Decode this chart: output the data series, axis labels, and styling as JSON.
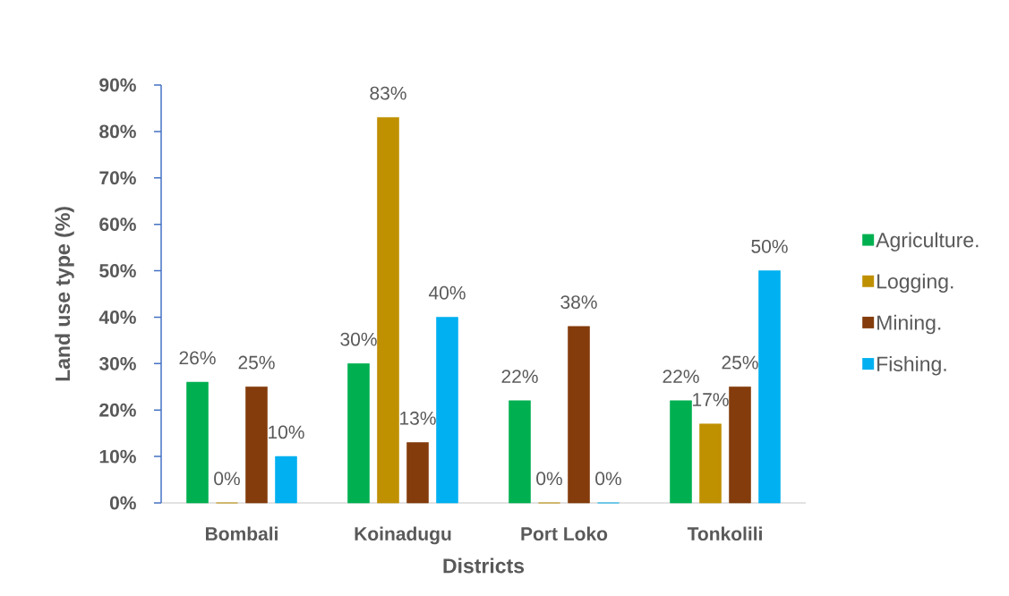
{
  "chart_data": {
    "type": "bar",
    "xlabel": "Districts",
    "ylabel": "Land use type (%)",
    "categories": [
      "Bombali",
      "Koinadugu",
      "Port Loko",
      "Tonkolili"
    ],
    "series": [
      {
        "name": "Agriculture.",
        "color": "#00b050",
        "values": [
          26,
          30,
          22,
          22
        ],
        "value_labels": [
          "26%",
          "30%",
          "22%",
          "22%"
        ]
      },
      {
        "name": "Logging.",
        "color": "#bf9000",
        "values": [
          0,
          83,
          0,
          17
        ],
        "value_labels": [
          "0%",
          "83%",
          "0%",
          "17%"
        ]
      },
      {
        "name": "Mining.",
        "color": "#843c0c",
        "values": [
          25,
          13,
          38,
          25
        ],
        "value_labels": [
          "25%",
          "13%",
          "38%",
          "25%"
        ]
      },
      {
        "name": "Fishing.",
        "color": "#00b0f0",
        "values": [
          10,
          40,
          0,
          50
        ],
        "value_labels": [
          "10%",
          "40%",
          "0%",
          "50%"
        ]
      }
    ],
    "ylim": [
      0,
      90
    ],
    "yticks": [
      {
        "value": 0,
        "label": "0%"
      },
      {
        "value": 10,
        "label": "10%"
      },
      {
        "value": 20,
        "label": "20%"
      },
      {
        "value": 30,
        "label": "30%"
      },
      {
        "value": 40,
        "label": "40%"
      },
      {
        "value": 50,
        "label": "50%"
      },
      {
        "value": 60,
        "label": "60%"
      },
      {
        "value": 70,
        "label": "70%"
      },
      {
        "value": 80,
        "label": "80%"
      },
      {
        "value": 90,
        "label": "90%"
      }
    ],
    "legend": "right"
  }
}
